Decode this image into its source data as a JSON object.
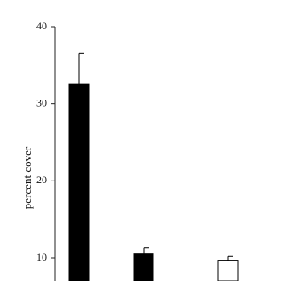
{
  "chart_data": {
    "type": "bar",
    "y_label": "percent cover",
    "categories": [
      null,
      null,
      null
    ],
    "values": [
      32.6,
      10.5,
      9.7
    ],
    "errors": [
      3.9,
      0.8,
      0.5
    ],
    "colors": [
      "#000000",
      "#000000",
      "#ffffff"
    ],
    "ylim": [
      7,
      40
    ],
    "yticks": [
      10,
      20,
      30,
      40
    ]
  }
}
